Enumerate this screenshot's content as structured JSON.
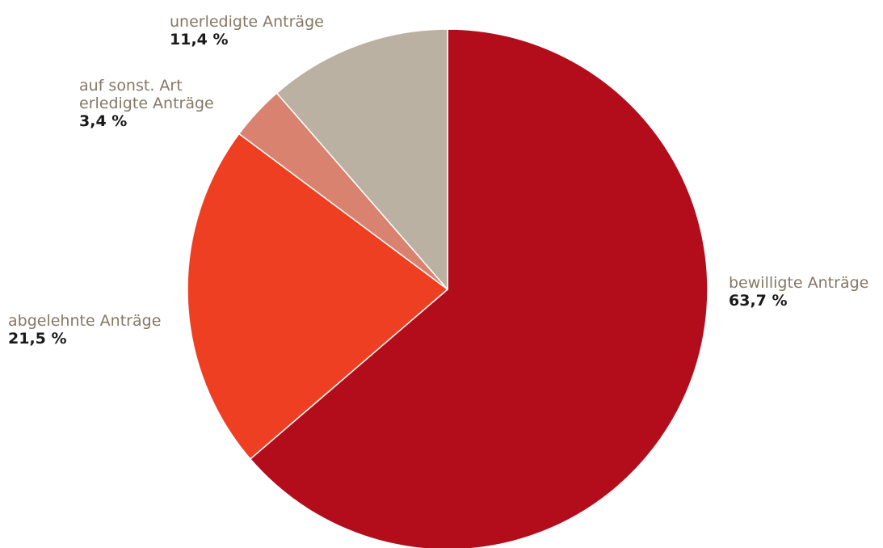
{
  "chart_data": {
    "type": "pie",
    "slices": [
      {
        "label": "bewilligte Anträge",
        "label_lines": [
          "bewilligte Anträge"
        ],
        "value": 63.7,
        "display": "63,7 %",
        "color": "#b30d1c"
      },
      {
        "label": "abgelehnte Anträge",
        "label_lines": [
          "abgelehnte Anträge"
        ],
        "value": 21.5,
        "display": "21,5 %",
        "color": "#ef3f23"
      },
      {
        "label": "auf sonst. Art erledigte Anträge",
        "label_lines": [
          "auf sonst. Art",
          "erledigte Anträge"
        ],
        "value": 3.4,
        "display": "3,4 %",
        "color": "#d98270"
      },
      {
        "label": "unerledigte Anträge",
        "label_lines": [
          "unerledigte Anträge"
        ],
        "value": 11.4,
        "display": "11,4 %",
        "color": "#bbb1a2"
      }
    ],
    "start_angle_deg": 0,
    "direction": "clockwise"
  }
}
